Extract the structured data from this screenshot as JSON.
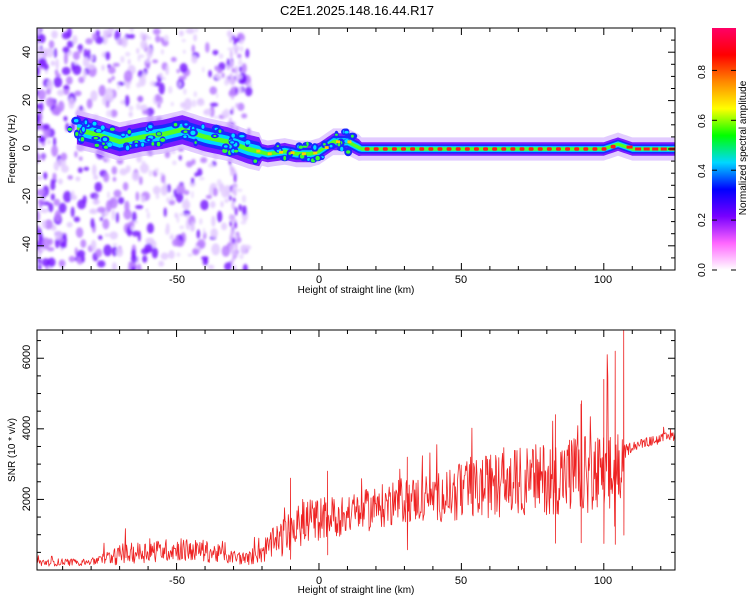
{
  "title": "C2E1.2025.148.16.44.R17",
  "chart_data": [
    {
      "type": "heatmap",
      "xlabel": "Height of straight line (km)",
      "ylabel": "Frequency (Hz)",
      "xlim": [
        -99,
        125
      ],
      "ylim": [
        -50,
        50
      ],
      "x_ticks": [
        "-50",
        "0",
        "50",
        "100"
      ],
      "y_ticks": [
        "-40",
        "-20",
        "0",
        "20",
        "40"
      ],
      "colorbar": {
        "label": "Normalized spectral amplitude",
        "range": [
          0.0,
          0.97
        ],
        "ticks": [
          "0.0",
          "0.2",
          "0.4",
          "0.6",
          "0.8"
        ],
        "colors": [
          "#ffffff",
          "#ff66ff",
          "#7700ff",
          "#0000ff",
          "#00d8ff",
          "#00ff00",
          "#ffff00",
          "#ff8800",
          "#ff0000",
          "#ff0066"
        ]
      },
      "ridge": {
        "x": [
          -85,
          -78,
          -70,
          -62,
          -55,
          -48,
          -40,
          -32,
          -25,
          -18,
          -12,
          -8,
          -3,
          0,
          5,
          10,
          15,
          25,
          50,
          75,
          100,
          105,
          110,
          125
        ],
        "freq": [
          8,
          6,
          3,
          5,
          6,
          8,
          5,
          3,
          0,
          -2,
          -1,
          -2,
          -2,
          -1,
          3,
          3,
          0,
          0,
          0,
          0,
          0,
          2,
          0,
          0
        ]
      }
    },
    {
      "type": "line",
      "xlabel": "Height of straight line (km)",
      "ylabel": "SNR (10 * v/v)",
      "xlim": [
        -99,
        125
      ],
      "ylim": [
        0,
        6800
      ],
      "x_ticks": [
        "-50",
        "0",
        "50",
        "100"
      ],
      "y_ticks": [
        "2000",
        "4000",
        "6000"
      ],
      "color": "#ee2222",
      "envelope": {
        "x": [
          -99,
          -80,
          -70,
          -60,
          -50,
          -40,
          -30,
          -25,
          -20,
          -12,
          -5,
          0,
          10,
          20,
          30,
          40,
          50,
          60,
          70,
          80,
          90,
          100,
          105,
          107,
          110,
          115,
          125
        ],
        "base": [
          200,
          220,
          400,
          500,
          550,
          500,
          350,
          300,
          500,
          900,
          1300,
          1400,
          1500,
          1700,
          1900,
          2000,
          2100,
          2300,
          2400,
          2500,
          2600,
          2500,
          2400,
          3300,
          3500,
          3600,
          3800
        ],
        "amp": [
          150,
          150,
          400,
          450,
          450,
          450,
          300,
          250,
          500,
          800,
          900,
          900,
          800,
          900,
          900,
          1000,
          1200,
          1300,
          1400,
          1500,
          1600,
          1800,
          2500,
          300,
          200,
          200,
          200
        ]
      },
      "peaks": [
        {
          "x": -10,
          "y": 2600
        },
        {
          "x": 3,
          "y": 2800
        },
        {
          "x": 31,
          "y": 3200
        },
        {
          "x": 83,
          "y": 4400
        },
        {
          "x": 92,
          "y": 4700
        },
        {
          "x": 100,
          "y": 5400
        },
        {
          "x": 104,
          "y": 6200
        },
        {
          "x": 107,
          "y": 6800
        }
      ]
    }
  ]
}
